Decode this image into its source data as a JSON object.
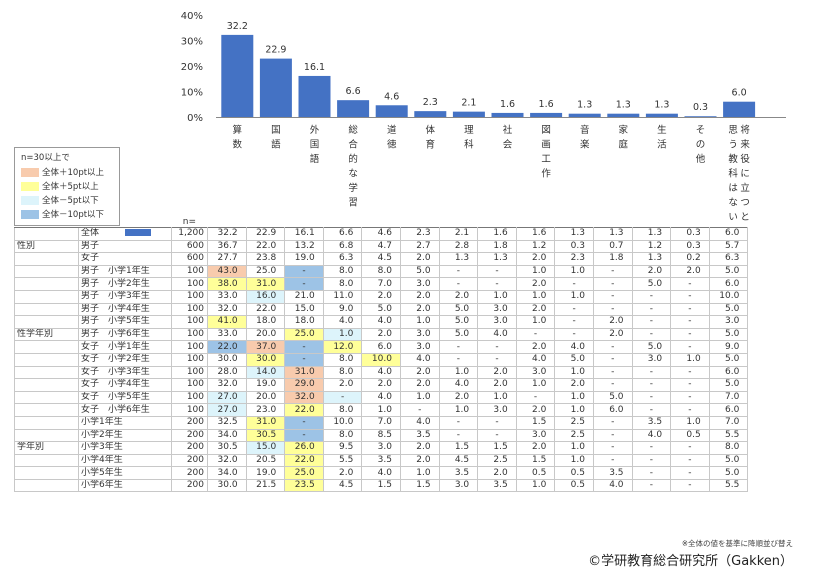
{
  "chart_data": {
    "type": "bar",
    "yticks": [
      "40%",
      "30%",
      "20%",
      "10%",
      "0%"
    ],
    "ylim": [
      0,
      40
    ],
    "n_header": "n=",
    "bar_color": "#4472c4",
    "categories": [
      "算数",
      "国語",
      "外国語",
      "総合的な学習",
      "道徳",
      "体育",
      "理科",
      "社会",
      "図画工作",
      "音楽",
      "家庭",
      "生活",
      "その他",
      "将来役に立つと思う教科はない"
    ],
    "values": [
      32.2,
      22.9,
      16.1,
      6.6,
      4.6,
      2.3,
      2.1,
      1.6,
      1.6,
      1.3,
      1.3,
      1.3,
      0.3,
      6.0
    ],
    "value_labels": [
      "32.2",
      "22.9",
      "16.1",
      "6.6",
      "4.6",
      "2.3",
      "2.1",
      "1.6",
      "1.6",
      "1.3",
      "1.3",
      "1.3",
      "0.3",
      "6.0"
    ],
    "legend": {
      "title": "n=30以上で",
      "items": [
        {
          "label": "全体＋10pt以上",
          "color": "#f8cbad"
        },
        {
          "label": "全体＋5pt以上",
          "color": "#ffff99"
        },
        {
          "label": "全体－5pt以下",
          "color": "#ddf4fb"
        },
        {
          "label": "全体－10pt以下",
          "color": "#9dc3e6"
        }
      ]
    },
    "colors": {
      "A": "#f8cbad",
      "B": "#ffff99",
      "C": "#ddf4fb",
      "D": "#9dc3e6"
    },
    "table": [
      {
        "group": "",
        "label": "全体",
        "swatch": true,
        "n": "1,200",
        "cells": [
          "32.2",
          "22.9",
          "16.1",
          "6.6",
          "4.6",
          "2.3",
          "2.1",
          "1.6",
          "1.6",
          "1.3",
          "1.3",
          "1.3",
          "0.3",
          "6.0"
        ],
        "hl": [
          "",
          "",
          "",
          "",
          "",
          "",
          "",
          "",
          "",
          "",
          "",
          "",
          "",
          ""
        ]
      },
      {
        "group": "性別",
        "label": "男子",
        "n": "600",
        "cells": [
          "36.7",
          "22.0",
          "13.2",
          "6.8",
          "4.7",
          "2.7",
          "2.8",
          "1.8",
          "1.2",
          "0.3",
          "0.7",
          "1.2",
          "0.3",
          "5.7"
        ],
        "hl": [
          "",
          "",
          "",
          "",
          "",
          "",
          "",
          "",
          "",
          "",
          "",
          "",
          "",
          ""
        ]
      },
      {
        "group": "",
        "label": "女子",
        "n": "600",
        "cells": [
          "27.7",
          "23.8",
          "19.0",
          "6.3",
          "4.5",
          "2.0",
          "1.3",
          "1.3",
          "2.0",
          "2.3",
          "1.8",
          "1.3",
          "0.2",
          "6.3"
        ],
        "hl": [
          "",
          "",
          "",
          "",
          "",
          "",
          "",
          "",
          "",
          "",
          "",
          "",
          "",
          ""
        ]
      },
      {
        "group": "",
        "label": "男子　小学1年生",
        "n": "100",
        "cells": [
          "43.0",
          "25.0",
          "-",
          "8.0",
          "8.0",
          "5.0",
          "-",
          "-",
          "1.0",
          "1.0",
          "-",
          "2.0",
          "2.0",
          "5.0"
        ],
        "hl": [
          "A",
          "",
          "D",
          "",
          "",
          "",
          "",
          "",
          "",
          "",
          "",
          "",
          "",
          ""
        ]
      },
      {
        "group": "",
        "label": "男子　小学2年生",
        "n": "100",
        "cells": [
          "38.0",
          "31.0",
          "-",
          "8.0",
          "7.0",
          "3.0",
          "-",
          "-",
          "2.0",
          "-",
          "-",
          "5.0",
          "-",
          "6.0"
        ],
        "hl": [
          "B",
          "B",
          "D",
          "",
          "",
          "",
          "",
          "",
          "",
          "",
          "",
          "",
          "",
          ""
        ]
      },
      {
        "group": "",
        "label": "男子　小学3年生",
        "n": "100",
        "cells": [
          "33.0",
          "16.0",
          "21.0",
          "11.0",
          "2.0",
          "2.0",
          "2.0",
          "1.0",
          "1.0",
          "1.0",
          "-",
          "-",
          "-",
          "10.0"
        ],
        "hl": [
          "",
          "C",
          "",
          "",
          "",
          "",
          "",
          "",
          "",
          "",
          "",
          "",
          "",
          ""
        ]
      },
      {
        "group": "",
        "label": "男子　小学4年生",
        "n": "100",
        "cells": [
          "32.0",
          "22.0",
          "15.0",
          "9.0",
          "5.0",
          "2.0",
          "5.0",
          "3.0",
          "2.0",
          "-",
          "-",
          "-",
          "-",
          "5.0"
        ],
        "hl": [
          "",
          "",
          "",
          "",
          "",
          "",
          "",
          "",
          "",
          "",
          "",
          "",
          "",
          ""
        ]
      },
      {
        "group": "",
        "label": "男子　小学5年生",
        "n": "100",
        "cells": [
          "41.0",
          "18.0",
          "18.0",
          "4.0",
          "4.0",
          "1.0",
          "5.0",
          "3.0",
          "1.0",
          "-",
          "2.0",
          "-",
          "-",
          "3.0"
        ],
        "hl": [
          "B",
          "",
          "",
          "",
          "",
          "",
          "",
          "",
          "",
          "",
          "",
          "",
          "",
          ""
        ]
      },
      {
        "group": "性学年別",
        "label": "男子　小学6年生",
        "n": "100",
        "cells": [
          "33.0",
          "20.0",
          "25.0",
          "1.0",
          "2.0",
          "3.0",
          "5.0",
          "4.0",
          "-",
          "-",
          "2.0",
          "-",
          "-",
          "5.0"
        ],
        "hl": [
          "",
          "",
          "B",
          "C",
          "",
          "",
          "",
          "",
          "",
          "",
          "",
          "",
          "",
          ""
        ]
      },
      {
        "group": "",
        "label": "女子　小学1年生",
        "n": "100",
        "cells": [
          "22.0",
          "37.0",
          "-",
          "12.0",
          "6.0",
          "3.0",
          "-",
          "-",
          "2.0",
          "4.0",
          "-",
          "5.0",
          "-",
          "9.0"
        ],
        "hl": [
          "D",
          "A",
          "D",
          "B",
          "",
          "",
          "",
          "",
          "",
          "",
          "",
          "",
          "",
          ""
        ]
      },
      {
        "group": "",
        "label": "女子　小学2年生",
        "n": "100",
        "cells": [
          "30.0",
          "30.0",
          "-",
          "8.0",
          "10.0",
          "4.0",
          "-",
          "-",
          "4.0",
          "5.0",
          "-",
          "3.0",
          "1.0",
          "5.0"
        ],
        "hl": [
          "",
          "B",
          "D",
          "",
          "B",
          "",
          "",
          "",
          "",
          "",
          "",
          "",
          "",
          ""
        ]
      },
      {
        "group": "",
        "label": "女子　小学3年生",
        "n": "100",
        "cells": [
          "28.0",
          "14.0",
          "31.0",
          "8.0",
          "4.0",
          "2.0",
          "1.0",
          "2.0",
          "3.0",
          "1.0",
          "-",
          "-",
          "-",
          "6.0"
        ],
        "hl": [
          "",
          "C",
          "A",
          "",
          "",
          "",
          "",
          "",
          "",
          "",
          "",
          "",
          "",
          ""
        ]
      },
      {
        "group": "",
        "label": "女子　小学4年生",
        "n": "100",
        "cells": [
          "32.0",
          "19.0",
          "29.0",
          "2.0",
          "2.0",
          "2.0",
          "4.0",
          "2.0",
          "1.0",
          "2.0",
          "-",
          "-",
          "-",
          "5.0"
        ],
        "hl": [
          "",
          "",
          "A",
          "",
          "",
          "",
          "",
          "",
          "",
          "",
          "",
          "",
          "",
          ""
        ]
      },
      {
        "group": "",
        "label": "女子　小学5年生",
        "n": "100",
        "cells": [
          "27.0",
          "20.0",
          "32.0",
          "-",
          "4.0",
          "1.0",
          "2.0",
          "1.0",
          "-",
          "1.0",
          "5.0",
          "-",
          "-",
          "7.0"
        ],
        "hl": [
          "C",
          "",
          "A",
          "C",
          "",
          "",
          "",
          "",
          "",
          "",
          "",
          "",
          "",
          ""
        ]
      },
      {
        "group": "",
        "label": "女子　小学6年生",
        "n": "100",
        "cells": [
          "27.0",
          "23.0",
          "22.0",
          "8.0",
          "1.0",
          "-",
          "1.0",
          "3.0",
          "2.0",
          "1.0",
          "6.0",
          "-",
          "-",
          "6.0"
        ],
        "hl": [
          "C",
          "",
          "B",
          "",
          "",
          "",
          "",
          "",
          "",
          "",
          "",
          "",
          "",
          ""
        ]
      },
      {
        "group": "",
        "label": "小学1年生",
        "n": "200",
        "cells": [
          "32.5",
          "31.0",
          "-",
          "10.0",
          "7.0",
          "4.0",
          "-",
          "-",
          "1.5",
          "2.5",
          "-",
          "3.5",
          "1.0",
          "7.0"
        ],
        "hl": [
          "",
          "B",
          "D",
          "",
          "",
          "",
          "",
          "",
          "",
          "",
          "",
          "",
          "",
          ""
        ]
      },
      {
        "group": "",
        "label": "小学2年生",
        "n": "200",
        "cells": [
          "34.0",
          "30.5",
          "-",
          "8.0",
          "8.5",
          "3.5",
          "-",
          "-",
          "3.0",
          "2.5",
          "-",
          "4.0",
          "0.5",
          "5.5"
        ],
        "hl": [
          "",
          "B",
          "D",
          "",
          "",
          "",
          "",
          "",
          "",
          "",
          "",
          "",
          "",
          ""
        ]
      },
      {
        "group": "学年別",
        "label": "小学3年生",
        "n": "200",
        "cells": [
          "30.5",
          "15.0",
          "26.0",
          "9.5",
          "3.0",
          "2.0",
          "1.5",
          "1.5",
          "2.0",
          "1.0",
          "-",
          "-",
          "-",
          "8.0"
        ],
        "hl": [
          "",
          "C",
          "B",
          "",
          "",
          "",
          "",
          "",
          "",
          "",
          "",
          "",
          "",
          ""
        ]
      },
      {
        "group": "",
        "label": "小学4年生",
        "n": "200",
        "cells": [
          "32.0",
          "20.5",
          "22.0",
          "5.5",
          "3.5",
          "2.0",
          "4.5",
          "2.5",
          "1.5",
          "1.0",
          "-",
          "-",
          "-",
          "5.0"
        ],
        "hl": [
          "",
          "",
          "B",
          "",
          "",
          "",
          "",
          "",
          "",
          "",
          "",
          "",
          "",
          ""
        ]
      },
      {
        "group": "",
        "label": "小学5年生",
        "n": "200",
        "cells": [
          "34.0",
          "19.0",
          "25.0",
          "2.0",
          "4.0",
          "1.0",
          "3.5",
          "2.0",
          "0.5",
          "0.5",
          "3.5",
          "-",
          "-",
          "5.0"
        ],
        "hl": [
          "",
          "",
          "B",
          "",
          "",
          "",
          "",
          "",
          "",
          "",
          "",
          "",
          "",
          ""
        ]
      },
      {
        "group": "",
        "label": "小学6年生",
        "n": "200",
        "cells": [
          "30.0",
          "21.5",
          "23.5",
          "4.5",
          "1.5",
          "1.5",
          "3.0",
          "3.5",
          "1.0",
          "0.5",
          "4.0",
          "-",
          "-",
          "5.5"
        ],
        "hl": [
          "",
          "",
          "B",
          "",
          "",
          "",
          "",
          "",
          "",
          "",
          "",
          "",
          "",
          ""
        ]
      }
    ]
  },
  "footer": {
    "note": "※全体の値を基準に降順並び替え",
    "copyright": "©学研教育総合研究所（Gakken）"
  }
}
